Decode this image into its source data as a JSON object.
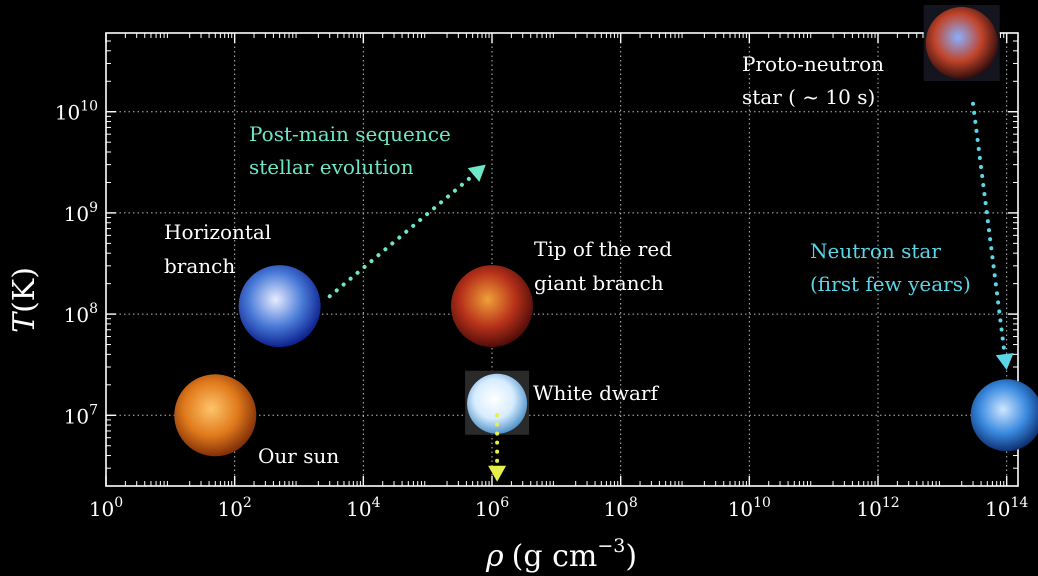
{
  "chart_data": {
    "type": "scatter",
    "x_scale": "log",
    "y_scale": "log",
    "xlim": [
      1,
      150000000000000.0
    ],
    "ylim": [
      2000000.0,
      60000000000.0
    ],
    "grid": true,
    "xlabel": "ρ (g cm⁻³)",
    "ylabel": "T (K)",
    "x_ticks": [
      {
        "value": 1,
        "exp": "0"
      },
      {
        "value": 100,
        "exp": "2"
      },
      {
        "value": 10000,
        "exp": "4"
      },
      {
        "value": 1000000,
        "exp": "6"
      },
      {
        "value": 100000000,
        "exp": "8"
      },
      {
        "value": 10000000000,
        "exp": "10"
      },
      {
        "value": 1000000000000,
        "exp": "12"
      },
      {
        "value": 100000000000000,
        "exp": "14"
      }
    ],
    "y_ticks": [
      {
        "value": 10000000,
        "exp": "7"
      },
      {
        "value": 100000000,
        "exp": "8"
      },
      {
        "value": 1000000000,
        "exp": "9"
      },
      {
        "value": 10000000000,
        "exp": "10"
      }
    ],
    "points": [
      {
        "id": "sun",
        "label": "Our sun",
        "x": 50,
        "y": 10000000.0,
        "colors": [
          "#ffc46b",
          "#e07a1c",
          "#7a2a06"
        ],
        "r_kind": "large"
      },
      {
        "id": "horizontal-branch",
        "label_lines": [
          "Horizontal",
          "branch"
        ],
        "x": 500,
        "y": 120000000.0,
        "colors": [
          "#e8ecff",
          "#4a7bd8",
          "#0a1c8a"
        ],
        "r_kind": "large"
      },
      {
        "id": "red-giant-tip",
        "label_lines": [
          "Tip of the red",
          "giant branch"
        ],
        "x": 1000000.0,
        "y": 120000000.0,
        "colors": [
          "#f0a03a",
          "#b8321a",
          "#4a0a08"
        ],
        "r_kind": "large"
      },
      {
        "id": "white-dwarf",
        "label": "White dwarf",
        "x": 1200000.0,
        "y": 13000000.0,
        "colors": [
          "#ffffff",
          "#d6ecff",
          "#4a8ec8"
        ],
        "r_kind": "small"
      },
      {
        "id": "neutron-star",
        "label_lines": [
          "Neutron star",
          "(first few years)"
        ],
        "x": 100000000000000.0,
        "y": 10000000.0,
        "colors": [
          "#cfe6ff",
          "#3a8ae0",
          "#0a2a6a"
        ],
        "r_kind": "medium"
      },
      {
        "id": "proto-neutron-star",
        "label_lines": [
          "Proto-neutron",
          "star ( ~ 10 s)"
        ],
        "x": 20000000000000.0,
        "y": 100000000000.0,
        "colors": [
          "#8ab0ff",
          "#c0442a",
          "#2a0a0a"
        ],
        "r_kind": "medium"
      }
    ],
    "arrows": [
      {
        "id": "post-main-sequence",
        "label_lines": [
          "Post-main sequence",
          "stellar evolution"
        ],
        "color": "#6ee6c8",
        "from": [
          3000,
          150000000.0
        ],
        "to": [
          800000,
          3000000000.0
        ]
      },
      {
        "id": "white-dwarf-cooling",
        "color": "#e6f04a",
        "from": [
          1200000.0,
          10000000.0
        ],
        "to": [
          1200000.0,
          2200000.0
        ]
      },
      {
        "id": "neutron-star-cooling",
        "color": "#5ad6e6",
        "from": [
          30000000000000.0,
          12000000000.0
        ],
        "to": [
          100000000000000.0,
          28000000.0
        ]
      }
    ]
  },
  "labels": {
    "our_sun": "Our sun",
    "horizontal_branch_1": "Horizontal",
    "horizontal_branch_2": "branch",
    "red_giant_1": "Tip of the red",
    "red_giant_2": "giant branch",
    "white_dwarf": "White dwarf",
    "neutron_star_1": "Neutron star",
    "neutron_star_2": "(first few years)",
    "proto_neutron_1": "Proto-neutron",
    "proto_neutron_2": "star ( ~ 10 s)",
    "post_main_1": "Post-main sequence",
    "post_main_2": "stellar evolution",
    "x_title_rho": "ρ",
    "x_title_units": "(g cm",
    "x_title_exp": "−3",
    "x_title_close": ")",
    "y_title_T": "T",
    "y_title_units": "(K)",
    "tick_base": "10"
  },
  "colors": {
    "post_main": "#6ee6c8",
    "neutron": "#5ad6e6",
    "white_dwarf_arrow": "#e6f04a"
  }
}
